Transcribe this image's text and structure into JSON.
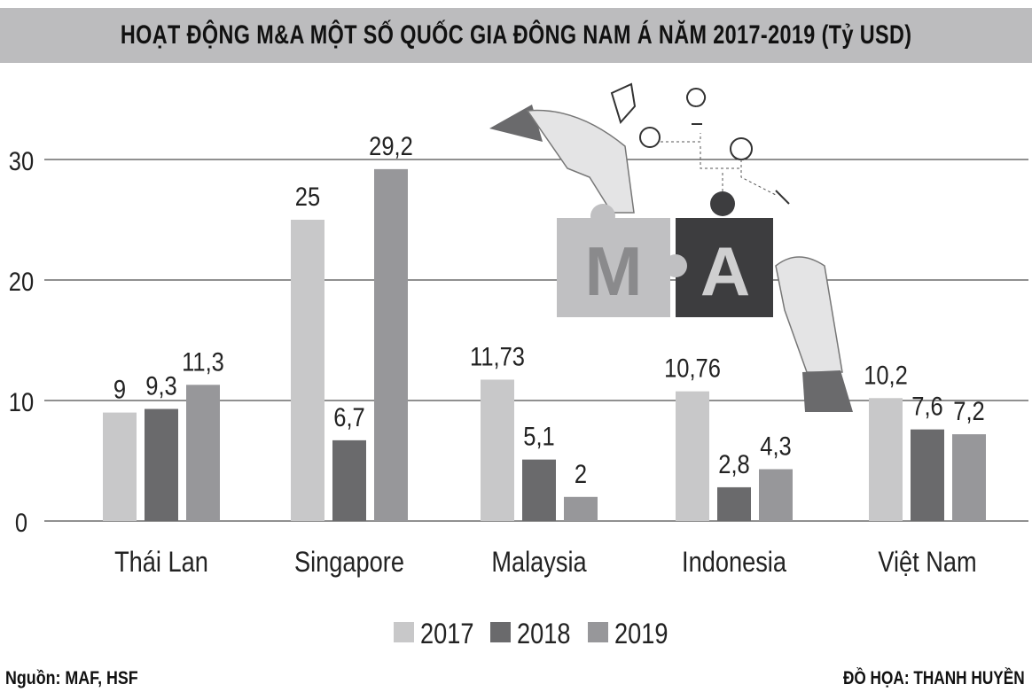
{
  "chart_data": {
    "type": "bar",
    "title": "HOẠT ĐỘNG M&A MỘT SỐ QUỐC GIA ĐÔNG NAM Á NĂM 2017-2019 (Tỷ USD)",
    "categories": [
      "Thái Lan",
      "Singapore",
      "Malaysia",
      "Indonesia",
      "Việt Nam"
    ],
    "series": [
      {
        "name": "2017",
        "values": [
          9,
          25,
          11.73,
          10.76,
          10.2
        ],
        "labels": [
          "9",
          "25",
          "11,73",
          "10,76",
          "10,2"
        ],
        "color": "#c8c8c9"
      },
      {
        "name": "2018",
        "values": [
          9.3,
          6.7,
          5.1,
          2.8,
          7.6
        ],
        "labels": [
          "9,3",
          "6,7",
          "5,1",
          "2,8",
          "7,6"
        ],
        "color": "#6a6a6c"
      },
      {
        "name": "2019",
        "values": [
          11.3,
          29.2,
          2,
          4.3,
          7.2
        ],
        "labels": [
          "11,3",
          "29,2",
          "2",
          "4,3",
          "7,2"
        ],
        "color": "#97979a"
      }
    ],
    "yticks": [
      0,
      10,
      20,
      30
    ],
    "ylim": [
      0,
      33
    ],
    "grid": true,
    "legend_position": "bottom"
  },
  "title": "HOẠT ĐỘNG M&A MỘT SỐ QUỐC GIA ĐÔNG NAM Á NĂM 2017-2019 (Tỷ USD)",
  "source": "Nguồn: MAF, HSF",
  "credit": "ĐỒ HỌA: THANH HUYỀN",
  "illustration": {
    "letters": [
      "M",
      "A"
    ]
  }
}
